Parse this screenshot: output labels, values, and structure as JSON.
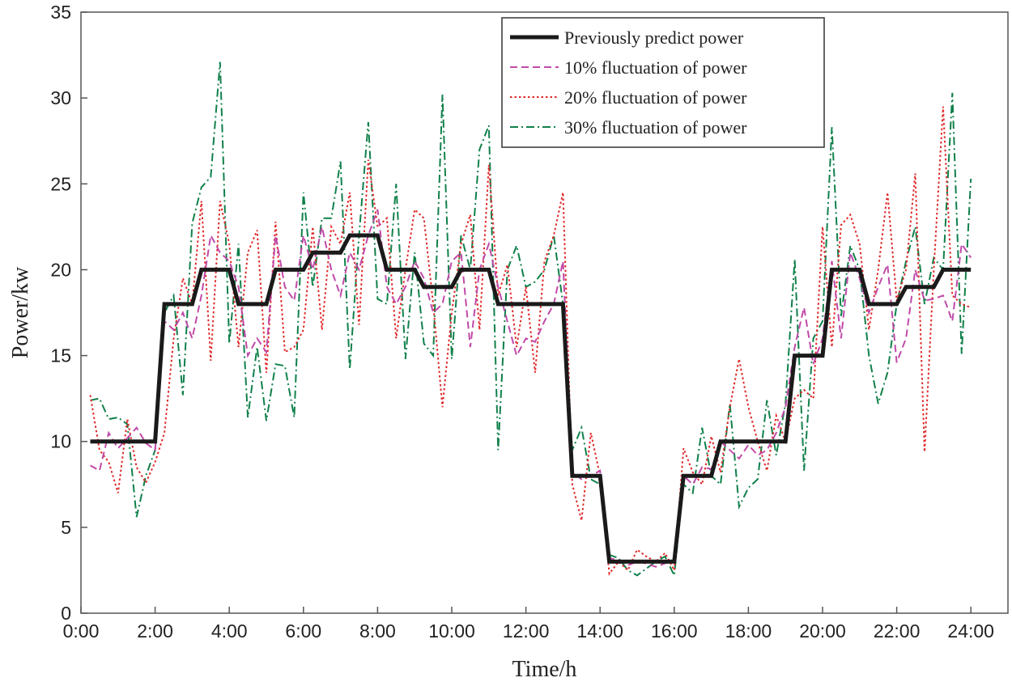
{
  "chart_data": {
    "type": "line",
    "title": "",
    "xlabel": "Time/h",
    "ylabel": "Power/kw",
    "xlim": [
      0,
      25
    ],
    "ylim": [
      0,
      35
    ],
    "xticks": [
      0,
      2,
      4,
      6,
      8,
      10,
      12,
      14,
      16,
      18,
      20,
      22,
      24
    ],
    "xtick_labels": [
      "0:00",
      "2:00",
      "4:00",
      "6:00",
      "8:00",
      "10:00",
      "12:00",
      "14:00",
      "16:00",
      "18:00",
      "20:00",
      "22:00",
      "24:00"
    ],
    "yticks": [
      0,
      5,
      10,
      15,
      20,
      25,
      30,
      35
    ],
    "ytick_labels": [
      "0",
      "5",
      "10",
      "15",
      "20",
      "25",
      "30",
      "35"
    ],
    "grid": false,
    "legend_position": "top-right",
    "x_step_hours": 0.25,
    "x_start_hours": 0.25,
    "series": [
      {
        "name": "Previously predict power",
        "color": "#1a1a1a",
        "style": "solid-thick",
        "hourly_values": [
          10,
          10,
          18,
          20,
          18,
          20,
          21,
          22,
          20,
          19,
          20,
          18,
          18,
          8,
          3,
          3,
          8,
          10,
          10,
          15,
          20,
          18,
          19,
          20
        ]
      },
      {
        "name": "10% fluctuation of power",
        "color": "#c04aa8",
        "style": "dashed",
        "values": [
          8.6,
          8.3,
          10.5,
          9.6,
          10.2,
          10.8,
          9.9,
          9.5,
          17,
          16.5,
          17.5,
          16,
          18.5,
          22,
          21,
          20.5,
          19,
          15,
          16,
          15.2,
          22,
          19,
          18.2,
          22,
          20,
          22.5,
          20,
          18.5,
          21,
          20,
          22,
          23.5,
          19,
          18,
          19,
          20.5,
          19.5,
          17.5,
          18,
          20.5,
          21,
          15.5,
          20,
          21.5,
          19,
          17,
          15,
          16,
          15.8,
          17,
          18,
          20.5,
          8.2,
          7.8,
          8,
          8.3,
          3.2,
          3.1,
          2.8,
          3,
          2.9,
          2.7,
          2.9,
          3.1,
          8,
          7.5,
          8.5,
          8.4,
          10,
          9.5,
          9,
          9.8,
          9.2,
          9.5,
          10.5,
          12,
          15.5,
          17.8,
          14.5,
          16,
          20.5,
          16,
          21,
          19.5,
          17.5,
          19,
          20.3,
          14.6,
          16,
          20,
          18.2,
          18.3,
          18.5,
          17,
          21.5,
          20.7
        ]
      },
      {
        "name": "20% fluctuation of power",
        "color": "#e02828",
        "style": "dotted",
        "values": [
          12.7,
          9.5,
          8.8,
          7,
          11.3,
          8.5,
          7.6,
          8.8,
          10.5,
          16,
          19.5,
          18,
          24,
          14.7,
          24,
          21.5,
          15.5,
          21,
          22.3,
          14,
          22.8,
          15.2,
          15.5,
          16.5,
          22.5,
          16.5,
          22.5,
          21.5,
          24.5,
          16.8,
          26.4,
          22.5,
          23,
          16,
          20,
          23.5,
          23,
          18,
          12,
          17.5,
          21.5,
          23.2,
          16.5,
          26.1,
          18.5,
          20.3,
          15.5,
          19,
          14,
          20.5,
          22,
          24.5,
          7.5,
          5.4,
          10.5,
          8,
          2.3,
          3,
          2.5,
          3.7,
          3.3,
          3,
          3.5,
          2.5,
          9.6,
          8.2,
          7.5,
          10.3,
          8.2,
          12,
          14.8,
          12,
          10,
          8.3,
          11.5,
          10,
          12.5,
          13,
          12.5,
          22.5,
          15.5,
          22.6,
          23.2,
          21.5,
          16.5,
          20,
          24.5,
          18.2,
          20,
          25.6,
          9.4,
          20,
          29.5,
          18.5,
          18,
          17.8
        ]
      },
      {
        "name": "30% fluctuation of power",
        "color": "#10804a",
        "style": "dashdot",
        "values": [
          12.4,
          12.5,
          11.3,
          11.4,
          11,
          5.6,
          8,
          9.5,
          17.5,
          18.5,
          12.7,
          22.7,
          24.8,
          25.4,
          32.1,
          15.7,
          21.5,
          11.4,
          15.5,
          11.2,
          14.5,
          14.4,
          11.4,
          24.5,
          19,
          23,
          23,
          26.3,
          14.2,
          22,
          28.6,
          18.3,
          18,
          25,
          14.8,
          21,
          15.7,
          15,
          30.2,
          14.8,
          22,
          20,
          27,
          28.4,
          9.5,
          20,
          21.4,
          19,
          19.3,
          20,
          22,
          18,
          9.5,
          10.8,
          7.8,
          7.5,
          3.4,
          3.2,
          2.5,
          2.2,
          2.6,
          3,
          3.3,
          2.2,
          7.5,
          7,
          10.8,
          8,
          7.5,
          12.2,
          6.2,
          7.3,
          7.8,
          12.4,
          9.2,
          12.2,
          20.6,
          8.3,
          16,
          17,
          28.3,
          17.3,
          21.4,
          20,
          15,
          12.2,
          14,
          18,
          20.5,
          22.5,
          18,
          20.7,
          20,
          30.3,
          15.1,
          25.3
        ]
      }
    ]
  }
}
